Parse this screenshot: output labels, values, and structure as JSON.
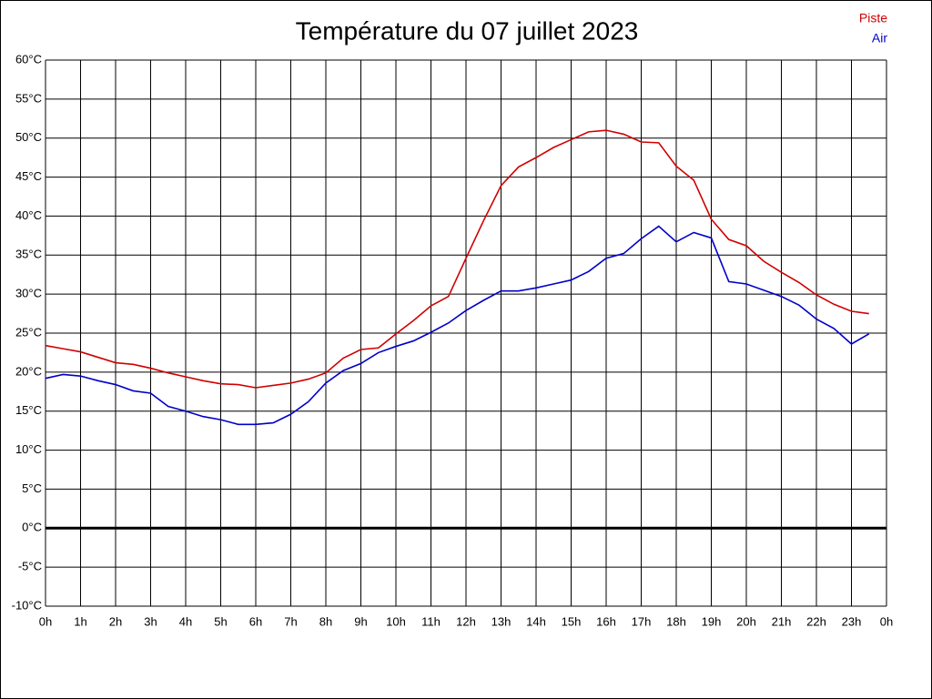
{
  "chart_data": {
    "type": "line",
    "title": "Température du 07 juillet 2023",
    "x": [
      0,
      0.5,
      1,
      1.5,
      2,
      2.5,
      3,
      3.5,
      4,
      4.5,
      5,
      5.5,
      6,
      6.5,
      7,
      7.5,
      8,
      8.5,
      9,
      9.5,
      10,
      10.5,
      11,
      11.5,
      12,
      12.5,
      13,
      13.5,
      14,
      14.5,
      15,
      15.5,
      16,
      16.5,
      17,
      17.5,
      18,
      18.5,
      19,
      19.5,
      20,
      20.5,
      21,
      21.5,
      22,
      22.5,
      23,
      23.5
    ],
    "series": [
      {
        "name": "Piste",
        "color": "#d00000",
        "values": [
          23.4,
          23.0,
          22.6,
          21.9,
          21.2,
          21.0,
          20.5,
          19.9,
          19.4,
          18.9,
          18.5,
          18.4,
          18.0,
          18.3,
          18.6,
          19.1,
          19.9,
          21.8,
          22.9,
          23.1,
          24.9,
          26.6,
          28.5,
          29.7,
          34.6,
          39.4,
          43.9,
          46.3,
          47.5,
          48.8,
          49.8,
          50.8,
          51.0,
          50.5,
          49.5,
          49.4,
          46.4,
          44.6,
          39.6,
          37.0,
          36.2,
          34.2,
          32.8,
          31.5,
          29.9,
          28.7,
          27.8,
          27.5
        ]
      },
      {
        "name": "Air",
        "color": "#0000c8",
        "values": [
          19.2,
          19.7,
          19.5,
          18.9,
          18.4,
          17.6,
          17.3,
          15.6,
          15.0,
          14.3,
          13.9,
          13.3,
          13.3,
          13.5,
          14.6,
          16.2,
          18.6,
          20.2,
          21.1,
          22.5,
          23.3,
          24.0,
          25.1,
          26.3,
          27.9,
          29.2,
          30.4,
          30.4,
          30.8,
          31.3,
          31.8,
          32.9,
          34.6,
          35.2,
          37.1,
          38.7,
          36.7,
          37.9,
          37.2,
          31.6,
          31.3,
          30.5,
          29.7,
          28.6,
          26.8,
          25.6,
          23.6,
          24.9
        ]
      }
    ],
    "xlim": [
      0,
      24
    ],
    "xticks": [
      {
        "value": 0,
        "label": "0h"
      },
      {
        "value": 1,
        "label": "1h"
      },
      {
        "value": 2,
        "label": "2h"
      },
      {
        "value": 3,
        "label": "3h"
      },
      {
        "value": 4,
        "label": "4h"
      },
      {
        "value": 5,
        "label": "5h"
      },
      {
        "value": 6,
        "label": "6h"
      },
      {
        "value": 7,
        "label": "7h"
      },
      {
        "value": 8,
        "label": "8h"
      },
      {
        "value": 9,
        "label": "9h"
      },
      {
        "value": 10,
        "label": "10h"
      },
      {
        "value": 11,
        "label": "11h"
      },
      {
        "value": 12,
        "label": "12h"
      },
      {
        "value": 13,
        "label": "13h"
      },
      {
        "value": 14,
        "label": "14h"
      },
      {
        "value": 15,
        "label": "15h"
      },
      {
        "value": 16,
        "label": "16h"
      },
      {
        "value": 17,
        "label": "17h"
      },
      {
        "value": 18,
        "label": "18h"
      },
      {
        "value": 19,
        "label": "19h"
      },
      {
        "value": 20,
        "label": "20h"
      },
      {
        "value": 21,
        "label": "21h"
      },
      {
        "value": 22,
        "label": "22h"
      },
      {
        "value": 23,
        "label": "23h"
      },
      {
        "value": 24,
        "label": "0h"
      }
    ],
    "ylim": [
      -10,
      60
    ],
    "yticks": [
      {
        "value": -10,
        "label": "-10°C"
      },
      {
        "value": -5,
        "label": "-5°C"
      },
      {
        "value": 0,
        "label": "0°C"
      },
      {
        "value": 5,
        "label": "5°C"
      },
      {
        "value": 10,
        "label": "10°C"
      },
      {
        "value": 15,
        "label": "15°C"
      },
      {
        "value": 20,
        "label": "20°C"
      },
      {
        "value": 25,
        "label": "25°C"
      },
      {
        "value": 30,
        "label": "30°C"
      },
      {
        "value": 35,
        "label": "35°C"
      },
      {
        "value": 40,
        "label": "40°C"
      },
      {
        "value": 45,
        "label": "45°C"
      },
      {
        "value": 50,
        "label": "50°C"
      },
      {
        "value": 55,
        "label": "55°C"
      },
      {
        "value": 60,
        "label": "60°C"
      }
    ],
    "grid": true,
    "zero_line": true,
    "legend": "top-right"
  }
}
